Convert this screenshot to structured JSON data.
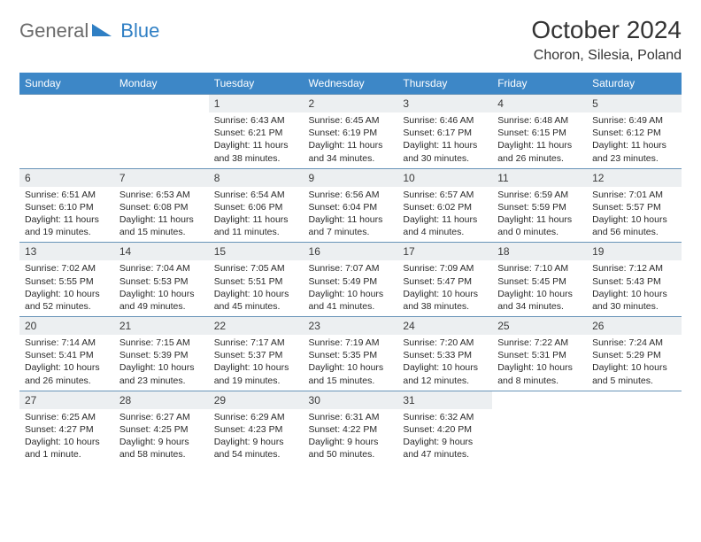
{
  "logo": {
    "text_general": "General",
    "text_blue": "Blue"
  },
  "title": "October 2024",
  "location": "Choron, Silesia, Poland",
  "colors": {
    "header_bg": "#3d87c7",
    "header_text": "#ffffff",
    "daynum_bg": "#eceff1",
    "row_border": "#6894b8",
    "logo_gray": "#6b6b6b",
    "logo_blue": "#2f7fc4"
  },
  "days_of_week": [
    "Sunday",
    "Monday",
    "Tuesday",
    "Wednesday",
    "Thursday",
    "Friday",
    "Saturday"
  ],
  "weeks": [
    [
      {
        "empty": true
      },
      {
        "empty": true
      },
      {
        "n": "1",
        "sr": "Sunrise: 6:43 AM",
        "ss": "Sunset: 6:21 PM",
        "dl": "Daylight: 11 hours and 38 minutes."
      },
      {
        "n": "2",
        "sr": "Sunrise: 6:45 AM",
        "ss": "Sunset: 6:19 PM",
        "dl": "Daylight: 11 hours and 34 minutes."
      },
      {
        "n": "3",
        "sr": "Sunrise: 6:46 AM",
        "ss": "Sunset: 6:17 PM",
        "dl": "Daylight: 11 hours and 30 minutes."
      },
      {
        "n": "4",
        "sr": "Sunrise: 6:48 AM",
        "ss": "Sunset: 6:15 PM",
        "dl": "Daylight: 11 hours and 26 minutes."
      },
      {
        "n": "5",
        "sr": "Sunrise: 6:49 AM",
        "ss": "Sunset: 6:12 PM",
        "dl": "Daylight: 11 hours and 23 minutes."
      }
    ],
    [
      {
        "n": "6",
        "sr": "Sunrise: 6:51 AM",
        "ss": "Sunset: 6:10 PM",
        "dl": "Daylight: 11 hours and 19 minutes."
      },
      {
        "n": "7",
        "sr": "Sunrise: 6:53 AM",
        "ss": "Sunset: 6:08 PM",
        "dl": "Daylight: 11 hours and 15 minutes."
      },
      {
        "n": "8",
        "sr": "Sunrise: 6:54 AM",
        "ss": "Sunset: 6:06 PM",
        "dl": "Daylight: 11 hours and 11 minutes."
      },
      {
        "n": "9",
        "sr": "Sunrise: 6:56 AM",
        "ss": "Sunset: 6:04 PM",
        "dl": "Daylight: 11 hours and 7 minutes."
      },
      {
        "n": "10",
        "sr": "Sunrise: 6:57 AM",
        "ss": "Sunset: 6:02 PM",
        "dl": "Daylight: 11 hours and 4 minutes."
      },
      {
        "n": "11",
        "sr": "Sunrise: 6:59 AM",
        "ss": "Sunset: 5:59 PM",
        "dl": "Daylight: 11 hours and 0 minutes."
      },
      {
        "n": "12",
        "sr": "Sunrise: 7:01 AM",
        "ss": "Sunset: 5:57 PM",
        "dl": "Daylight: 10 hours and 56 minutes."
      }
    ],
    [
      {
        "n": "13",
        "sr": "Sunrise: 7:02 AM",
        "ss": "Sunset: 5:55 PM",
        "dl": "Daylight: 10 hours and 52 minutes."
      },
      {
        "n": "14",
        "sr": "Sunrise: 7:04 AM",
        "ss": "Sunset: 5:53 PM",
        "dl": "Daylight: 10 hours and 49 minutes."
      },
      {
        "n": "15",
        "sr": "Sunrise: 7:05 AM",
        "ss": "Sunset: 5:51 PM",
        "dl": "Daylight: 10 hours and 45 minutes."
      },
      {
        "n": "16",
        "sr": "Sunrise: 7:07 AM",
        "ss": "Sunset: 5:49 PM",
        "dl": "Daylight: 10 hours and 41 minutes."
      },
      {
        "n": "17",
        "sr": "Sunrise: 7:09 AM",
        "ss": "Sunset: 5:47 PM",
        "dl": "Daylight: 10 hours and 38 minutes."
      },
      {
        "n": "18",
        "sr": "Sunrise: 7:10 AM",
        "ss": "Sunset: 5:45 PM",
        "dl": "Daylight: 10 hours and 34 minutes."
      },
      {
        "n": "19",
        "sr": "Sunrise: 7:12 AM",
        "ss": "Sunset: 5:43 PM",
        "dl": "Daylight: 10 hours and 30 minutes."
      }
    ],
    [
      {
        "n": "20",
        "sr": "Sunrise: 7:14 AM",
        "ss": "Sunset: 5:41 PM",
        "dl": "Daylight: 10 hours and 26 minutes."
      },
      {
        "n": "21",
        "sr": "Sunrise: 7:15 AM",
        "ss": "Sunset: 5:39 PM",
        "dl": "Daylight: 10 hours and 23 minutes."
      },
      {
        "n": "22",
        "sr": "Sunrise: 7:17 AM",
        "ss": "Sunset: 5:37 PM",
        "dl": "Daylight: 10 hours and 19 minutes."
      },
      {
        "n": "23",
        "sr": "Sunrise: 7:19 AM",
        "ss": "Sunset: 5:35 PM",
        "dl": "Daylight: 10 hours and 15 minutes."
      },
      {
        "n": "24",
        "sr": "Sunrise: 7:20 AM",
        "ss": "Sunset: 5:33 PM",
        "dl": "Daylight: 10 hours and 12 minutes."
      },
      {
        "n": "25",
        "sr": "Sunrise: 7:22 AM",
        "ss": "Sunset: 5:31 PM",
        "dl": "Daylight: 10 hours and 8 minutes."
      },
      {
        "n": "26",
        "sr": "Sunrise: 7:24 AM",
        "ss": "Sunset: 5:29 PM",
        "dl": "Daylight: 10 hours and 5 minutes."
      }
    ],
    [
      {
        "n": "27",
        "sr": "Sunrise: 6:25 AM",
        "ss": "Sunset: 4:27 PM",
        "dl": "Daylight: 10 hours and 1 minute."
      },
      {
        "n": "28",
        "sr": "Sunrise: 6:27 AM",
        "ss": "Sunset: 4:25 PM",
        "dl": "Daylight: 9 hours and 58 minutes."
      },
      {
        "n": "29",
        "sr": "Sunrise: 6:29 AM",
        "ss": "Sunset: 4:23 PM",
        "dl": "Daylight: 9 hours and 54 minutes."
      },
      {
        "n": "30",
        "sr": "Sunrise: 6:31 AM",
        "ss": "Sunset: 4:22 PM",
        "dl": "Daylight: 9 hours and 50 minutes."
      },
      {
        "n": "31",
        "sr": "Sunrise: 6:32 AM",
        "ss": "Sunset: 4:20 PM",
        "dl": "Daylight: 9 hours and 47 minutes."
      },
      {
        "empty": true
      },
      {
        "empty": true
      }
    ]
  ]
}
